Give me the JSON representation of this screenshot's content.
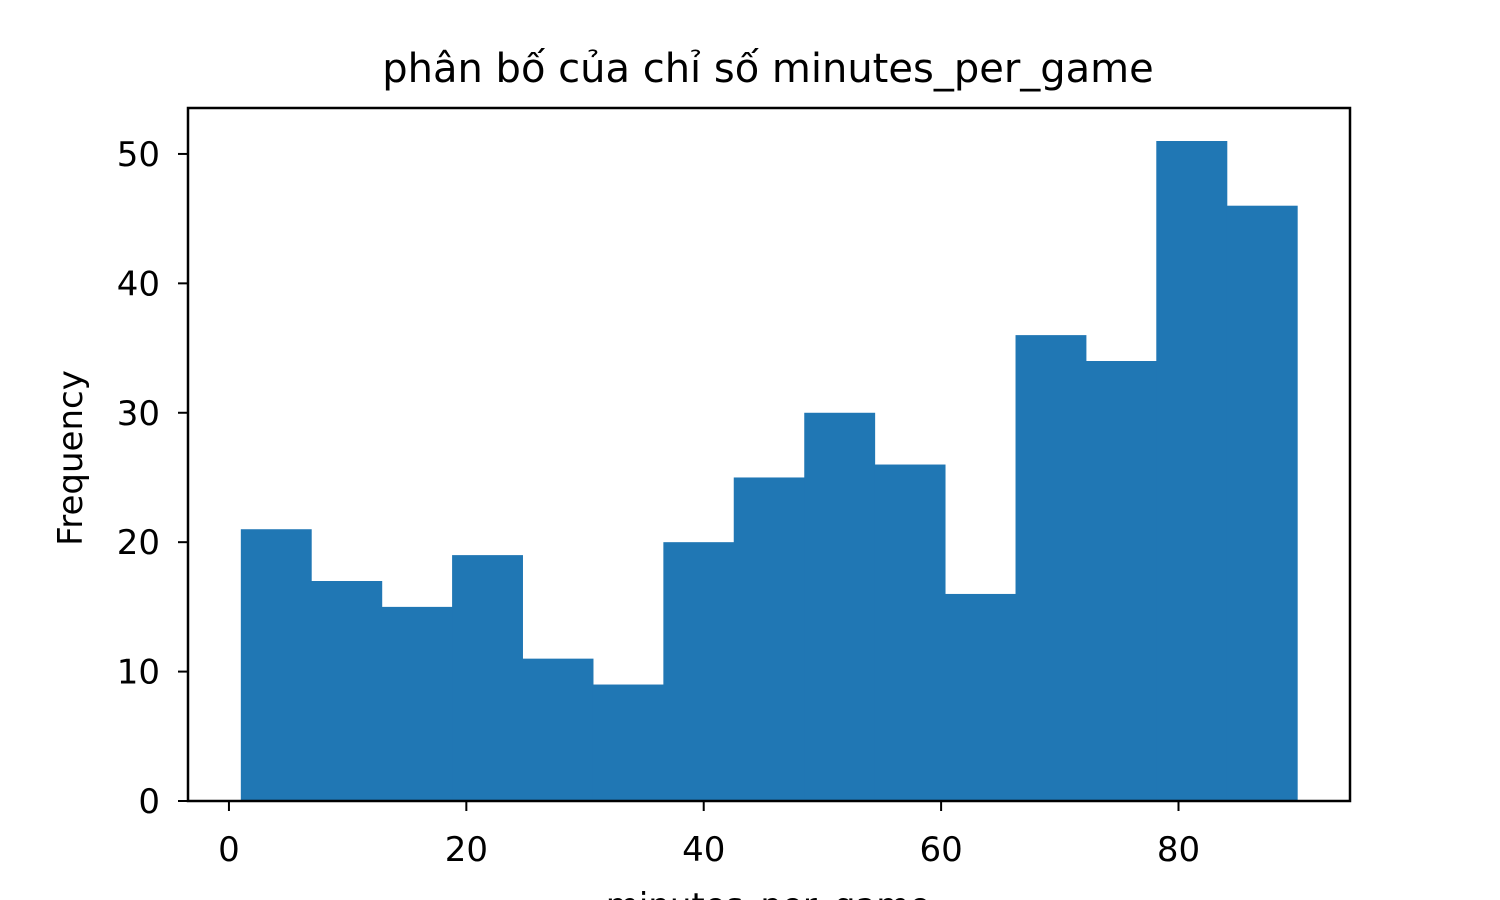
{
  "chart_data": {
    "type": "bar",
    "title": "phân bố của chỉ số minutes_per_game",
    "xlabel": "minutes_per_game",
    "ylabel": "Frequency",
    "bin_edges": [
      1,
      6.93,
      12.87,
      18.8,
      24.73,
      30.67,
      36.6,
      42.53,
      48.47,
      54.4,
      60.33,
      66.27,
      72.2,
      78.13,
      84.07,
      90
    ],
    "values": [
      21,
      17,
      15,
      19,
      11,
      9,
      20,
      25,
      30,
      26,
      16,
      36,
      34,
      51,
      46
    ],
    "xlim": [
      -3.45,
      94.45
    ],
    "ylim": [
      0,
      53.55
    ],
    "xticks": [
      0,
      20,
      40,
      60,
      80
    ],
    "yticks": [
      0,
      10,
      20,
      30,
      40,
      50
    ],
    "bar_color": "#2077b4",
    "grid": false,
    "legend": "none"
  }
}
